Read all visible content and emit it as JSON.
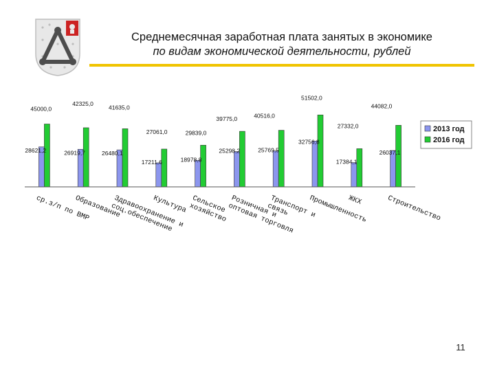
{
  "slide": {
    "title_line1": "Среднемесячная заработная плата занятых в экономике",
    "title_line2": "по видам экономической деятельности, рублей",
    "page_number": "11",
    "colors": {
      "rule": "#f0c400",
      "emblem_field": "#e8e8e8",
      "emblem_shield": "#cc2222"
    }
  },
  "chart_data": {
    "type": "bar",
    "title": "",
    "xlabel": "",
    "ylabel": "",
    "ylim": [
      0,
      60000
    ],
    "grid": false,
    "legend_position": "top-right",
    "categories": [
      "ср.з/п по ВМР",
      "Образование",
      "Здравоохранение и соц.обеспечение",
      "Культура",
      "Сельское хозяйство",
      "Розничная и оптовая торговля",
      "Транспорт и связь",
      "Промышленность",
      "ЖКХ",
      "Строительство"
    ],
    "series": [
      {
        "name": "2013 год",
        "color": "#8c96ee",
        "values": [
          28621.2,
          26919.7,
          26480.1,
          17211.6,
          18978.8,
          25298.2,
          25769.5,
          32756.8,
          17384.1,
          26037.1
        ],
        "labels": [
          "28621,2",
          "26919,7",
          "26480,1",
          "17211,6",
          "18978,8",
          "25298,2",
          "25769,5",
          "32756,8",
          "17384,1",
          "26037,1"
        ]
      },
      {
        "name": "2016 год",
        "color": "#22cc33",
        "values": [
          45000.0,
          42325.0,
          41635.0,
          27061.0,
          29839.0,
          39775.0,
          40516.0,
          51502.0,
          27332.0,
          44082.0
        ],
        "labels": [
          "45000,0",
          "42325,0",
          "41635,0",
          "27061,0",
          "29839,0",
          "39775,0",
          "40516,0",
          "51502,0",
          "27332,0",
          "44082,0"
        ]
      }
    ]
  }
}
